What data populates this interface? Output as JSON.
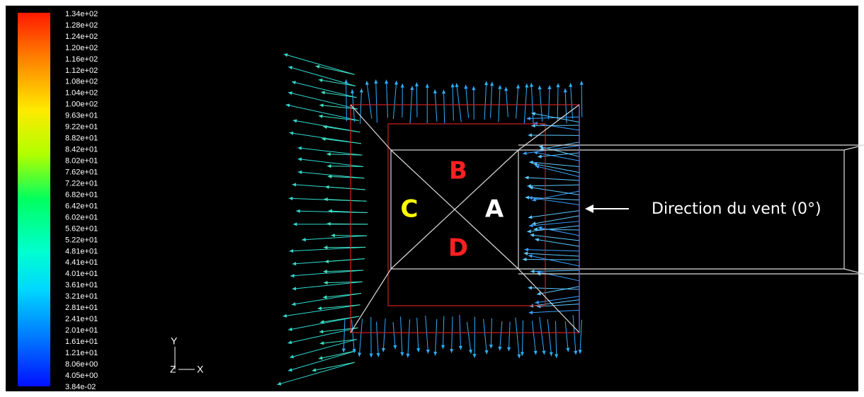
{
  "colorbar": {
    "labels": [
      "1.34e+02",
      "1.28e+02",
      "1.24e+02",
      "1.20e+02",
      "1.16e+02",
      "1.12e+02",
      "1.08e+02",
      "1.04e+02",
      "1.00e+02",
      "9.63e+01",
      "9.22e+01",
      "8.82e+01",
      "8.42e+01",
      "8.02e+01",
      "7.62e+01",
      "7.22e+01",
      "6.82e+01",
      "6.42e+01",
      "6.02e+01",
      "5.62e+01",
      "5.22e+01",
      "4.81e+01",
      "4.41e+01",
      "4.01e+01",
      "3.61e+01",
      "3.21e+01",
      "2.81e+01",
      "2.41e+01",
      "2.01e+01",
      "1.61e+01",
      "1.21e+01",
      "8.06e+00",
      "4.05e+00",
      "3.84e-02"
    ]
  },
  "axes": {
    "y": "Y",
    "z": "Z",
    "x": "X"
  },
  "regions": {
    "a": "A",
    "b": "B",
    "c": "C",
    "d": "D"
  },
  "wind_label": "Direction du vent (0°)"
}
